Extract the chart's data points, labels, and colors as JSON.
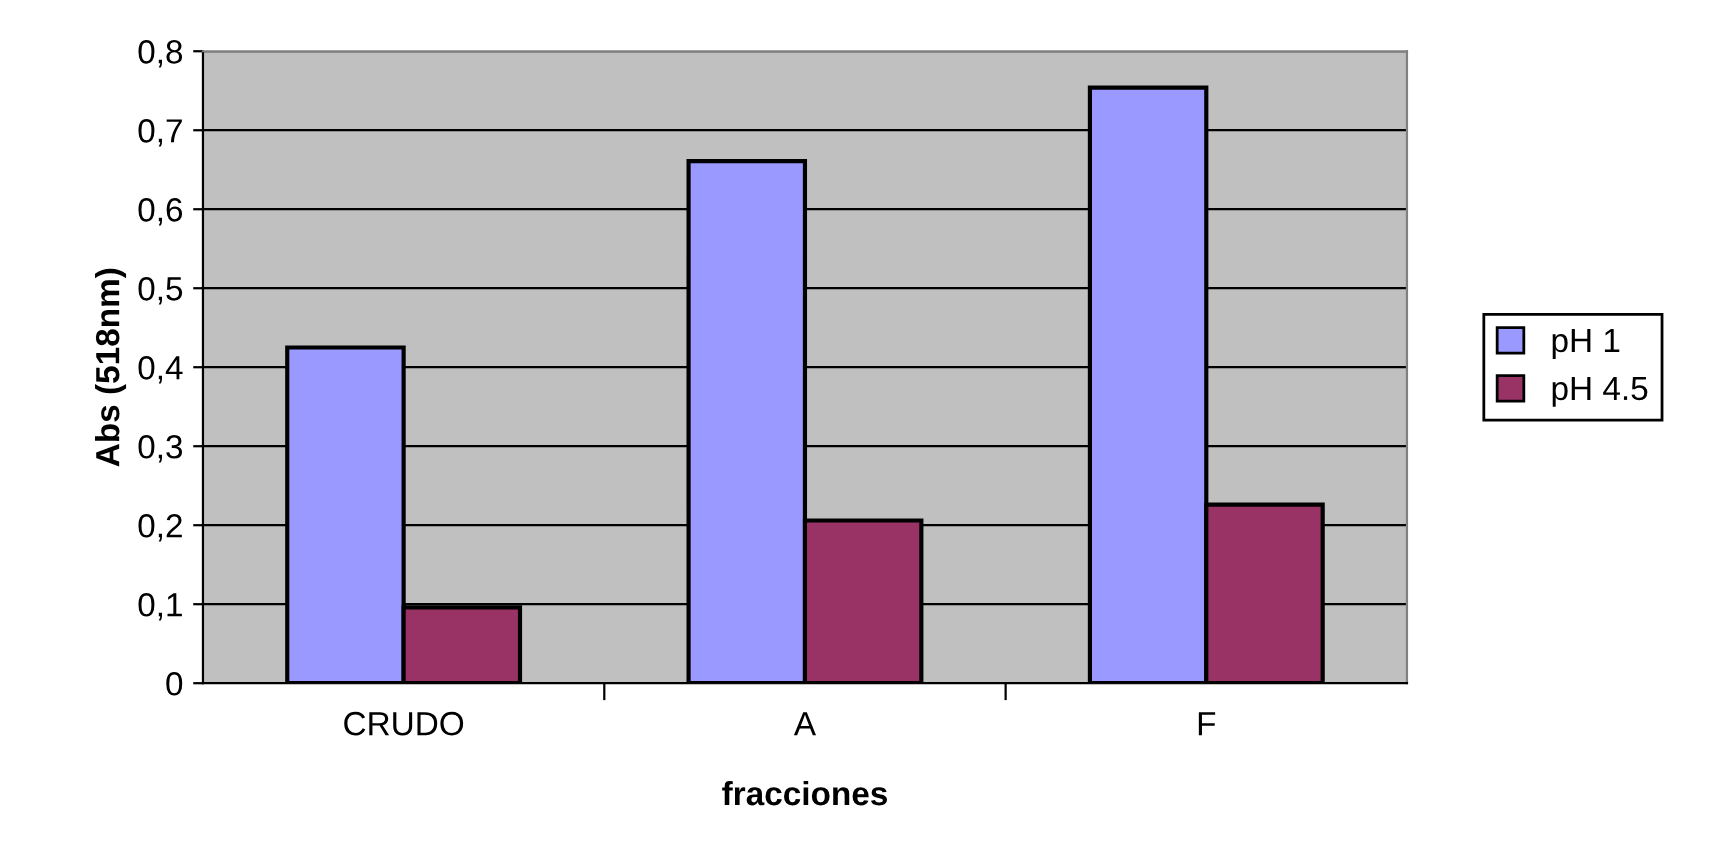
{
  "chart_data": {
    "type": "bar",
    "xlabel": "fracciones",
    "ylabel": "Abs (518nm)",
    "categories": [
      "CRUDO",
      "A",
      "F"
    ],
    "series": [
      {
        "name": "pH 1",
        "color": "#9999ff",
        "values": [
          0.425,
          0.661,
          0.754
        ]
      },
      {
        "name": "pH 4.5",
        "color": "#993366",
        "values": [
          0.096,
          0.206,
          0.226
        ]
      }
    ],
    "ylim": [
      0,
      0.8
    ],
    "yticks": [
      0,
      {
        "value": 0.1,
        "label": "0,1"
      },
      {
        "value": 0.2,
        "label": "0,2"
      },
      {
        "value": 0.3,
        "label": "0,3"
      },
      {
        "value": 0.4,
        "label": "0,4"
      },
      {
        "value": 0.5,
        "label": "0,5"
      },
      {
        "value": 0.6,
        "label": "0,6"
      },
      {
        "value": 0.7,
        "label": "0,7"
      },
      {
        "value": 0.8,
        "label": "0,8"
      }
    ],
    "grid": "y",
    "legend": "right"
  }
}
